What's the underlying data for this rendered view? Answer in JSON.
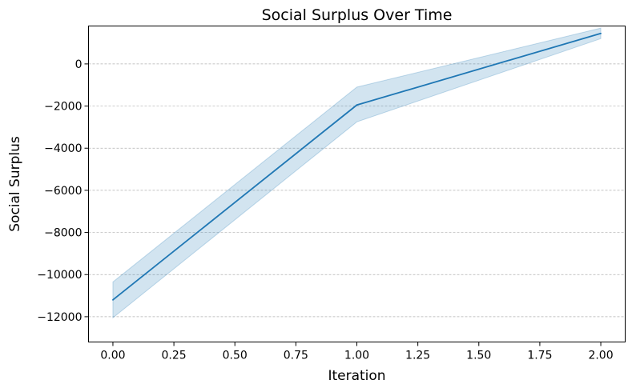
{
  "chart_data": {
    "type": "line",
    "title": "Social Surplus Over Time",
    "xlabel": "Iteration",
    "ylabel": "Social Surplus",
    "xlim": [
      -0.1,
      2.1
    ],
    "ylim": [
      -13200,
      1800
    ],
    "xticks": [
      0.0,
      0.25,
      0.5,
      0.75,
      1.0,
      1.25,
      1.5,
      1.75,
      2.0
    ],
    "xtick_labels": [
      "0.00",
      "0.25",
      "0.50",
      "0.75",
      "1.00",
      "1.25",
      "1.50",
      "1.75",
      "2.00"
    ],
    "yticks": [
      0,
      -2000,
      -4000,
      -6000,
      -8000,
      -10000,
      -12000
    ],
    "ytick_labels": [
      "0",
      "−2000",
      "−4000",
      "−6000",
      "−8000",
      "−10000",
      "−12000"
    ],
    "grid": "y-dashed",
    "series": [
      {
        "x": [
          0,
          1,
          2
        ],
        "values": [
          -11200,
          -1950,
          1450
        ],
        "ci_lower": [
          -12050,
          -2750,
          1200
        ],
        "ci_upper": [
          -10350,
          -1100,
          1700
        ],
        "color": "#1f77b4"
      }
    ]
  }
}
